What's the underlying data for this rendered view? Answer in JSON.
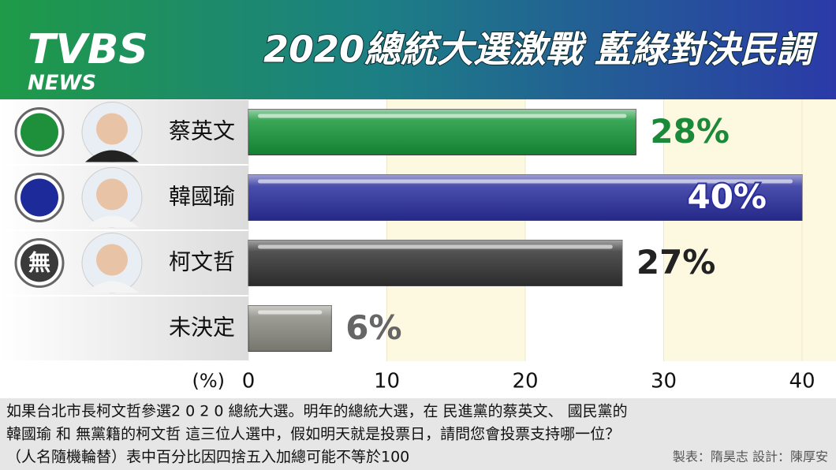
{
  "chart_data": {
    "type": "bar",
    "orientation": "horizontal",
    "title": "2020總統大選激戰 藍綠對決民調",
    "categories": [
      "蔡英文",
      "韓國瑜",
      "柯文哲",
      "未決定"
    ],
    "values": [
      28,
      40,
      27,
      6
    ],
    "value_labels": [
      "28%",
      "40%",
      "27%",
      "6%"
    ],
    "colors": [
      "#17973a",
      "#2b2f9e",
      "#333333",
      "#8c8b82"
    ],
    "label_colors": [
      "#1a8a3a",
      "#ffffff",
      "#222222",
      "#666666"
    ],
    "xlabel": "(%)",
    "xlim": [
      0,
      40
    ],
    "xticks": [
      0,
      10,
      20,
      30,
      40
    ]
  },
  "logo": {
    "brand": "TVBS",
    "sub": "NEWS"
  },
  "badge": "無",
  "footnote": [
    "如果台北市長柯文哲參選2 0 2 0 總統大選。明年的總統大選，在 民進黨的蔡英文、 國民黨的",
    "韓國瑜  和 無黨籍的柯文哲 這三位人選中，假如明天就是投票日，請問您會投票支持哪一位？",
    "（人名隨機輪替）表中百分比因四捨五入加總可能不等於100"
  ],
  "credits": "製表：隋昊志    設計：陳厚安"
}
